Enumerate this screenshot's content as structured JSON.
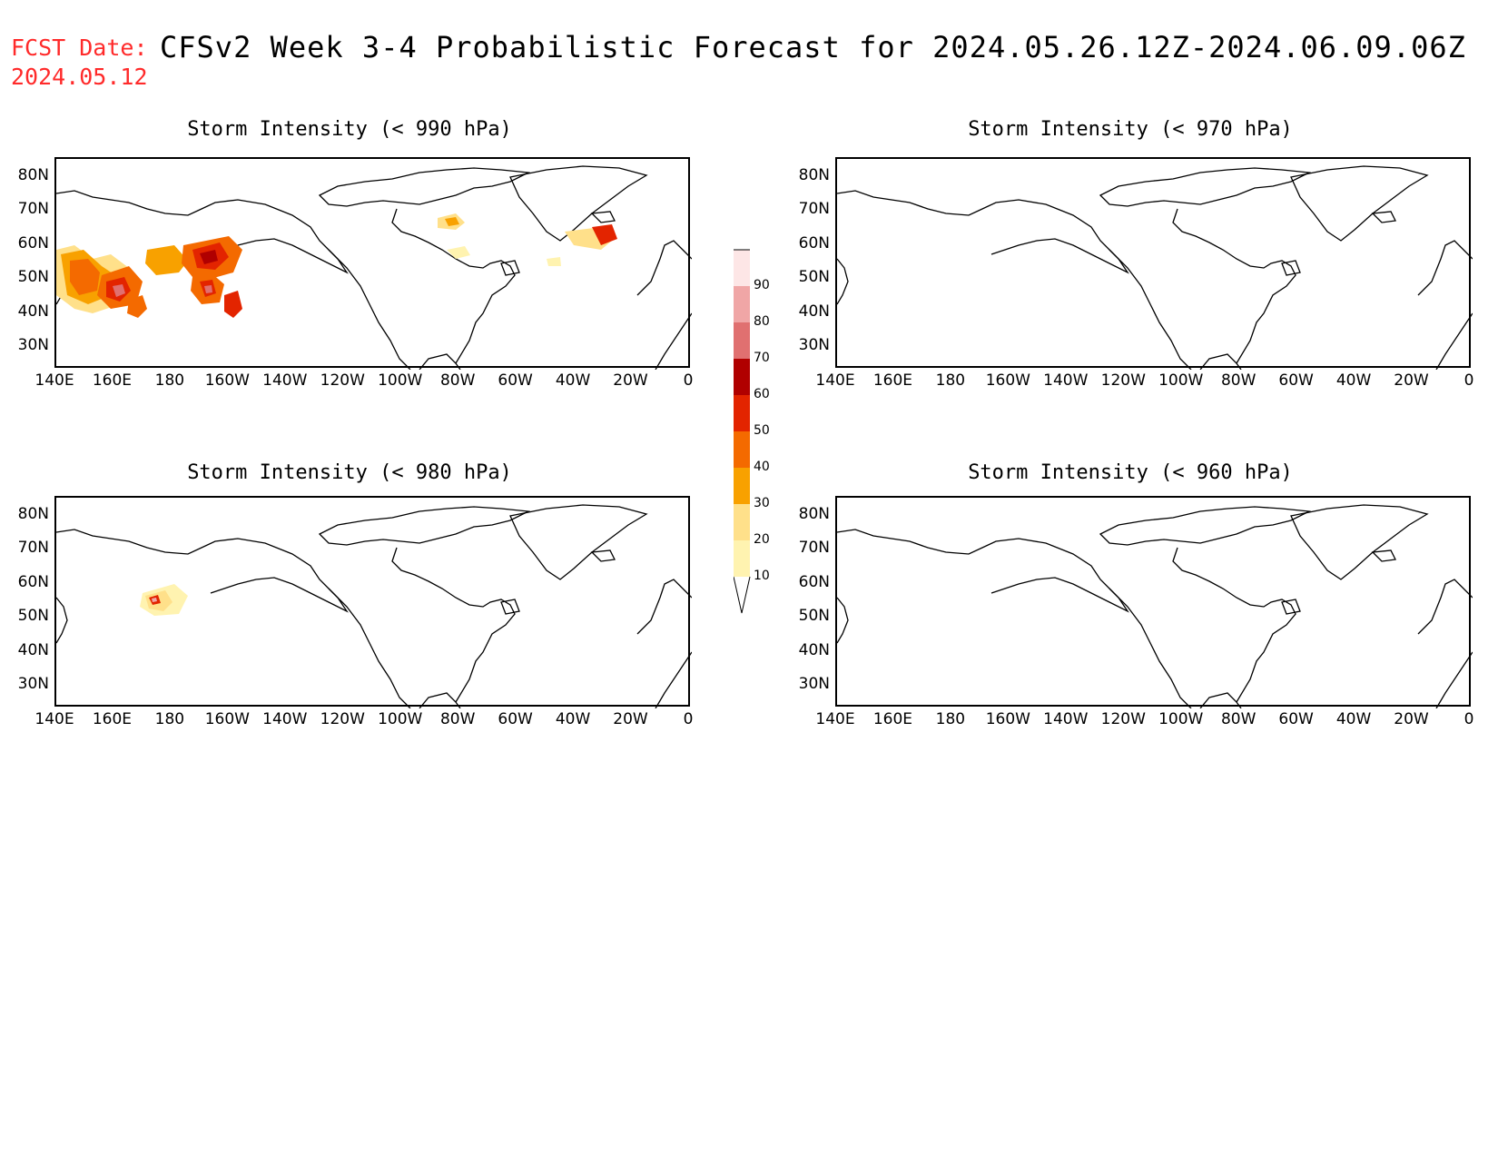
{
  "header": {
    "fcst_label": "FCST Date:",
    "fcst_date": "2024.05.12",
    "title": "CFSv2 Week 3-4 Probabilistic Forecast for 2024.05.26.12Z-2024.06.09.06Z"
  },
  "axes": {
    "lat_ticks": [
      "80N",
      "70N",
      "60N",
      "50N",
      "40N",
      "30N"
    ],
    "lon_ticks": [
      "140E",
      "160E",
      "180",
      "160W",
      "140W",
      "120W",
      "100W",
      "80W",
      "60W",
      "40W",
      "20W",
      "0"
    ]
  },
  "panels": [
    {
      "title": "Storm Intensity (< 990 hPa)"
    },
    {
      "title": "Storm Intensity (< 970 hPa)"
    },
    {
      "title": "Storm Intensity (< 980 hPa)"
    },
    {
      "title": "Storm Intensity (< 960 hPa)"
    }
  ],
  "colorbar": {
    "levels": [
      "10",
      "20",
      "30",
      "40",
      "50",
      "60",
      "70",
      "80",
      "90"
    ],
    "colors": [
      "#fff3b0",
      "#ffe08a",
      "#f8a100",
      "#f46a00",
      "#e32400",
      "#b00000",
      "#e07070",
      "#f0a6a6",
      "#fde6e6"
    ]
  }
}
